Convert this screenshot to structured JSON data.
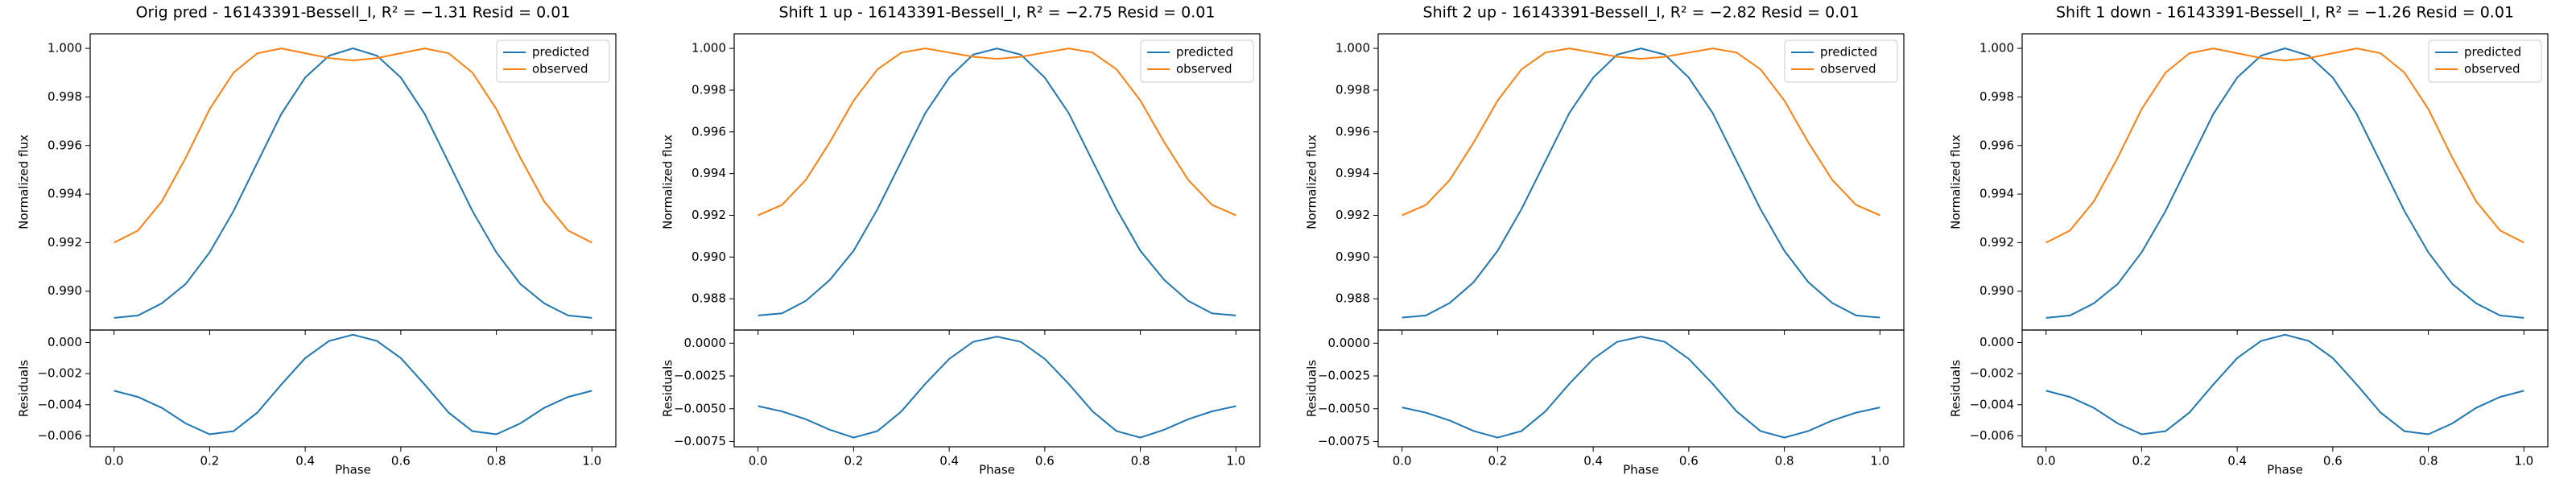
{
  "chart_data": [
    {
      "type": "line",
      "title": "Orig pred - 16143391-Bessell_I, R² = −1.31 Resid = 0.01",
      "x": [
        0,
        0.05,
        0.1,
        0.15,
        0.2,
        0.25,
        0.3,
        0.35,
        0.4,
        0.45,
        0.5,
        0.55,
        0.6,
        0.65,
        0.7,
        0.75,
        0.8,
        0.85,
        0.9,
        0.95,
        1.0
      ],
      "xlim": [
        -0.05,
        1.05
      ],
      "xticks": [
        {
          "value": 0,
          "label": "0.0"
        },
        {
          "value": 0.2,
          "label": "0.2"
        },
        {
          "value": 0.4,
          "label": "0.4"
        },
        {
          "value": 0.6,
          "label": "0.6"
        },
        {
          "value": 0.8,
          "label": "0.8"
        },
        {
          "value": 1,
          "label": "1.0"
        }
      ],
      "xlabel": "Phase",
      "ylabel": "Normalized flux",
      "legend": "upper right",
      "ylim": [
        0.9884,
        1.0006
      ],
      "yticks": [
        {
          "value": 0.99,
          "label": "0.990"
        },
        {
          "value": 0.992,
          "label": "0.992"
        },
        {
          "value": 0.994,
          "label": "0.994"
        },
        {
          "value": 0.996,
          "label": "0.996"
        },
        {
          "value": 0.998,
          "label": "0.998"
        },
        {
          "value": 1.0,
          "label": "1.000"
        }
      ],
      "series": [
        {
          "name": "predicted",
          "color": "#1f77b4",
          "values": [
            0.9889,
            0.989,
            0.9895,
            0.9903,
            0.9916,
            0.9933,
            0.9953,
            0.9973,
            0.9988,
            0.9997,
            1.0,
            0.9997,
            0.9988,
            0.9973,
            0.9953,
            0.9933,
            0.9916,
            0.9903,
            0.9895,
            0.989,
            0.9889
          ]
        },
        {
          "name": "observed",
          "color": "#ff7f0e",
          "values": [
            0.992,
            0.9925,
            0.9937,
            0.9955,
            0.9975,
            0.999,
            0.9998,
            1.0,
            0.9998,
            0.9996,
            0.9995,
            0.9996,
            0.9998,
            1.0,
            0.9998,
            0.999,
            0.9975,
            0.9955,
            0.9937,
            0.9925,
            0.992
          ]
        }
      ],
      "residuals": {
        "ylabel": "Residuals",
        "color": "#1f77b4",
        "ylim": [
          -0.0067,
          0.0008
        ],
        "yticks": [
          {
            "value": 0,
            "label": "0.000"
          },
          {
            "value": -0.002,
            "label": "−0.002"
          },
          {
            "value": -0.004,
            "label": "−0.004"
          },
          {
            "value": -0.006,
            "label": "−0.006"
          }
        ],
        "values": [
          -0.0031,
          -0.0035,
          -0.0042,
          -0.0052,
          -0.0059,
          -0.0057,
          -0.0045,
          -0.0027,
          -0.001,
          0.0001,
          0.0005,
          0.0001,
          -0.001,
          -0.0027,
          -0.0045,
          -0.0057,
          -0.0059,
          -0.0052,
          -0.0042,
          -0.0035,
          -0.0031
        ]
      }
    },
    {
      "type": "line",
      "title": "Shift 1 up - 16143391-Bessell_I, R² = −2.75 Resid = 0.01",
      "x": [
        0,
        0.05,
        0.1,
        0.15,
        0.2,
        0.25,
        0.3,
        0.35,
        0.4,
        0.45,
        0.5,
        0.55,
        0.6,
        0.65,
        0.7,
        0.75,
        0.8,
        0.85,
        0.9,
        0.95,
        1.0
      ],
      "xlim": [
        -0.05,
        1.05
      ],
      "xticks": [
        {
          "value": 0,
          "label": "0.0"
        },
        {
          "value": 0.2,
          "label": "0.2"
        },
        {
          "value": 0.4,
          "label": "0.4"
        },
        {
          "value": 0.6,
          "label": "0.6"
        },
        {
          "value": 0.8,
          "label": "0.8"
        },
        {
          "value": 1,
          "label": "1.0"
        }
      ],
      "xlabel": "Phase",
      "ylabel": "Normalized flux",
      "legend": "upper right",
      "ylim": [
        0.9865,
        1.0007
      ],
      "yticks": [
        {
          "value": 0.988,
          "label": "0.988"
        },
        {
          "value": 0.99,
          "label": "0.990"
        },
        {
          "value": 0.992,
          "label": "0.992"
        },
        {
          "value": 0.994,
          "label": "0.994"
        },
        {
          "value": 0.996,
          "label": "0.996"
        },
        {
          "value": 0.998,
          "label": "0.998"
        },
        {
          "value": 1.0,
          "label": "1.000"
        }
      ],
      "series": [
        {
          "name": "predicted",
          "color": "#1f77b4",
          "values": [
            0.9872,
            0.9873,
            0.9879,
            0.9889,
            0.9903,
            0.9923,
            0.9946,
            0.9969,
            0.9986,
            0.9997,
            1.0,
            0.9997,
            0.9986,
            0.9969,
            0.9946,
            0.9923,
            0.9903,
            0.9889,
            0.9879,
            0.9873,
            0.9872
          ]
        },
        {
          "name": "observed",
          "color": "#ff7f0e",
          "values": [
            0.992,
            0.9925,
            0.9937,
            0.9955,
            0.9975,
            0.999,
            0.9998,
            1.0,
            0.9998,
            0.9996,
            0.9995,
            0.9996,
            0.9998,
            1.0,
            0.9998,
            0.999,
            0.9975,
            0.9955,
            0.9937,
            0.9925,
            0.992
          ]
        }
      ],
      "residuals": {
        "ylabel": "Residuals",
        "color": "#1f77b4",
        "ylim": [
          -0.0079,
          0.001
        ],
        "yticks": [
          {
            "value": 0,
            "label": "0.0000"
          },
          {
            "value": -0.0025,
            "label": "−0.0025"
          },
          {
            "value": -0.005,
            "label": "−0.0050"
          },
          {
            "value": -0.0075,
            "label": "−0.0075"
          }
        ],
        "values": [
          -0.0048,
          -0.0052,
          -0.0058,
          -0.0066,
          -0.0072,
          -0.0067,
          -0.0052,
          -0.0031,
          -0.0012,
          0.0001,
          0.0005,
          0.0001,
          -0.0012,
          -0.0031,
          -0.0052,
          -0.0067,
          -0.0072,
          -0.0066,
          -0.0058,
          -0.0052,
          -0.0048
        ]
      }
    },
    {
      "type": "line",
      "title": "Shift 2 up - 16143391-Bessell_I, R² = −2.82 Resid = 0.01",
      "x": [
        0,
        0.05,
        0.1,
        0.15,
        0.2,
        0.25,
        0.3,
        0.35,
        0.4,
        0.45,
        0.5,
        0.55,
        0.6,
        0.65,
        0.7,
        0.75,
        0.8,
        0.85,
        0.9,
        0.95,
        1.0
      ],
      "xlim": [
        -0.05,
        1.05
      ],
      "xticks": [
        {
          "value": 0,
          "label": "0.0"
        },
        {
          "value": 0.2,
          "label": "0.2"
        },
        {
          "value": 0.4,
          "label": "0.4"
        },
        {
          "value": 0.6,
          "label": "0.6"
        },
        {
          "value": 0.8,
          "label": "0.8"
        },
        {
          "value": 1,
          "label": "1.0"
        }
      ],
      "xlabel": "Phase",
      "ylabel": "Normalized flux",
      "legend": "upper right",
      "ylim": [
        0.9865,
        1.0007
      ],
      "yticks": [
        {
          "value": 0.988,
          "label": "0.988"
        },
        {
          "value": 0.99,
          "label": "0.990"
        },
        {
          "value": 0.992,
          "label": "0.992"
        },
        {
          "value": 0.994,
          "label": "0.994"
        },
        {
          "value": 0.996,
          "label": "0.996"
        },
        {
          "value": 0.998,
          "label": "0.998"
        },
        {
          "value": 1.0,
          "label": "1.000"
        }
      ],
      "series": [
        {
          "name": "predicted",
          "color": "#1f77b4",
          "values": [
            0.9871,
            0.9872,
            0.9878,
            0.9888,
            0.9903,
            0.9923,
            0.9946,
            0.9969,
            0.9986,
            0.9997,
            1.0,
            0.9997,
            0.9986,
            0.9969,
            0.9946,
            0.9923,
            0.9903,
            0.9888,
            0.9878,
            0.9872,
            0.9871
          ]
        },
        {
          "name": "observed",
          "color": "#ff7f0e",
          "values": [
            0.992,
            0.9925,
            0.9937,
            0.9955,
            0.9975,
            0.999,
            0.9998,
            1.0,
            0.9998,
            0.9996,
            0.9995,
            0.9996,
            0.9998,
            1.0,
            0.9998,
            0.999,
            0.9975,
            0.9955,
            0.9937,
            0.9925,
            0.992
          ]
        }
      ],
      "residuals": {
        "ylabel": "Residuals",
        "color": "#1f77b4",
        "ylim": [
          -0.0079,
          0.001
        ],
        "yticks": [
          {
            "value": 0,
            "label": "0.0000"
          },
          {
            "value": -0.0025,
            "label": "−0.0025"
          },
          {
            "value": -0.005,
            "label": "−0.0050"
          },
          {
            "value": -0.0075,
            "label": "−0.0075"
          }
        ],
        "values": [
          -0.0049,
          -0.0053,
          -0.0059,
          -0.0067,
          -0.0072,
          -0.0067,
          -0.0052,
          -0.0031,
          -0.0012,
          0.0001,
          0.0005,
          0.0001,
          -0.0012,
          -0.0031,
          -0.0052,
          -0.0067,
          -0.0072,
          -0.0067,
          -0.0059,
          -0.0053,
          -0.0049
        ]
      }
    },
    {
      "type": "line",
      "title": "Shift 1 down - 16143391-Bessell_I, R² = −1.26 Resid = 0.01",
      "x": [
        0,
        0.05,
        0.1,
        0.15,
        0.2,
        0.25,
        0.3,
        0.35,
        0.4,
        0.45,
        0.5,
        0.55,
        0.6,
        0.65,
        0.7,
        0.75,
        0.8,
        0.85,
        0.9,
        0.95,
        1.0
      ],
      "xlim": [
        -0.05,
        1.05
      ],
      "xticks": [
        {
          "value": 0,
          "label": "0.0"
        },
        {
          "value": 0.2,
          "label": "0.2"
        },
        {
          "value": 0.4,
          "label": "0.4"
        },
        {
          "value": 0.6,
          "label": "0.6"
        },
        {
          "value": 0.8,
          "label": "0.8"
        },
        {
          "value": 1,
          "label": "1.0"
        }
      ],
      "xlabel": "Phase",
      "ylabel": "Normalized flux",
      "legend": "upper right",
      "ylim": [
        0.9884,
        1.0006
      ],
      "yticks": [
        {
          "value": 0.99,
          "label": "0.990"
        },
        {
          "value": 0.992,
          "label": "0.992"
        },
        {
          "value": 0.994,
          "label": "0.994"
        },
        {
          "value": 0.996,
          "label": "0.996"
        },
        {
          "value": 0.998,
          "label": "0.998"
        },
        {
          "value": 1.0,
          "label": "1.000"
        }
      ],
      "series": [
        {
          "name": "predicted",
          "color": "#1f77b4",
          "values": [
            0.9889,
            0.989,
            0.9895,
            0.9903,
            0.9916,
            0.9933,
            0.9953,
            0.9973,
            0.9988,
            0.9997,
            1.0,
            0.9997,
            0.9988,
            0.9973,
            0.9953,
            0.9933,
            0.9916,
            0.9903,
            0.9895,
            0.989,
            0.9889
          ]
        },
        {
          "name": "observed",
          "color": "#ff7f0e",
          "values": [
            0.992,
            0.9925,
            0.9937,
            0.9955,
            0.9975,
            0.999,
            0.9998,
            1.0,
            0.9998,
            0.9996,
            0.9995,
            0.9996,
            0.9998,
            1.0,
            0.9998,
            0.999,
            0.9975,
            0.9955,
            0.9937,
            0.9925,
            0.992
          ]
        }
      ],
      "residuals": {
        "ylabel": "Residuals",
        "color": "#1f77b4",
        "ylim": [
          -0.0067,
          0.0008
        ],
        "yticks": [
          {
            "value": 0,
            "label": "0.000"
          },
          {
            "value": -0.002,
            "label": "−0.002"
          },
          {
            "value": -0.004,
            "label": "−0.004"
          },
          {
            "value": -0.006,
            "label": "−0.006"
          }
        ],
        "values": [
          -0.0031,
          -0.0035,
          -0.0042,
          -0.0052,
          -0.0059,
          -0.0057,
          -0.0045,
          -0.0027,
          -0.001,
          0.0001,
          0.0005,
          0.0001,
          -0.001,
          -0.0027,
          -0.0045,
          -0.0057,
          -0.0059,
          -0.0052,
          -0.0042,
          -0.0035,
          -0.0031
        ]
      }
    }
  ]
}
